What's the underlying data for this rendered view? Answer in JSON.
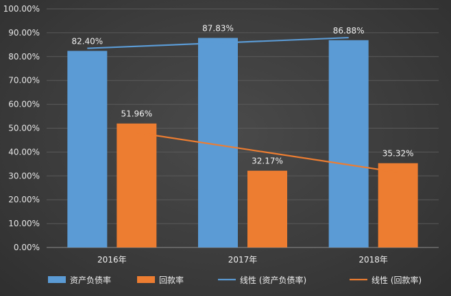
{
  "chart_data": {
    "type": "bar",
    "categories": [
      "2016年",
      "2017年",
      "2018年"
    ],
    "series": [
      {
        "name": "资产负债率",
        "values": [
          82.4,
          87.83,
          86.88
        ],
        "labels": [
          "82.40%",
          "87.83%",
          "86.88%"
        ],
        "color": "#5b9bd5"
      },
      {
        "name": "回款率",
        "values": [
          51.96,
          32.17,
          35.32
        ],
        "labels": [
          "51.96%",
          "32.17%",
          "35.32%"
        ],
        "color": "#ed7d31"
      }
    ],
    "trendlines": [
      {
        "name": "线性 (资产负债率)",
        "of_series": 0,
        "color": "#5b9bd5"
      },
      {
        "name": "线性 (回款率)",
        "of_series": 1,
        "color": "#ed7d31"
      }
    ],
    "ylim": [
      0,
      100
    ],
    "yticks": [
      "0.00%",
      "10.00%",
      "20.00%",
      "30.00%",
      "40.00%",
      "50.00%",
      "60.00%",
      "70.00%",
      "80.00%",
      "90.00%",
      "100.00%"
    ],
    "grid": true,
    "legend_position": "bottom",
    "title": "",
    "xlabel": "",
    "ylabel": ""
  }
}
